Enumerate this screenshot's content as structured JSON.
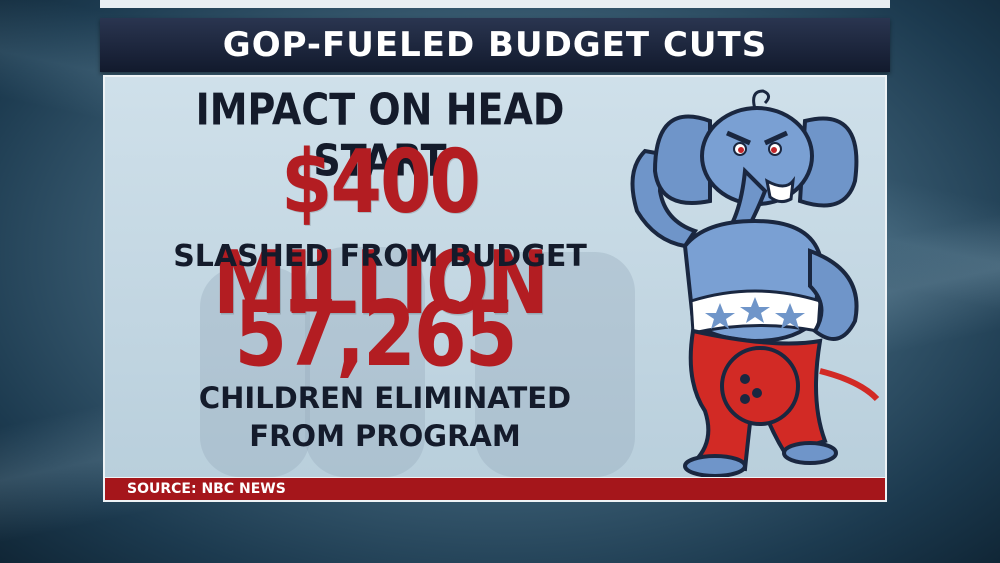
{
  "title": "GOP-FUELED BUDGET CUTS",
  "headline": "IMPACT ON HEAD START",
  "amount": "$400 MILLION",
  "amount_caption": "SLASHED FROM BUDGET",
  "count": "57,265",
  "count_caption_line1": "CHILDREN ELIMINATED",
  "count_caption_line2": "FROM PROGRAM",
  "source": "SOURCE: NBC NEWS",
  "colors": {
    "title_bar": "#121a2d",
    "accent_red": "#b31d22",
    "dark_text": "#141b2b",
    "panel": "#c4d7e3",
    "mascot_blue": "#6f95c9",
    "mascot_red": "#d22a25"
  }
}
